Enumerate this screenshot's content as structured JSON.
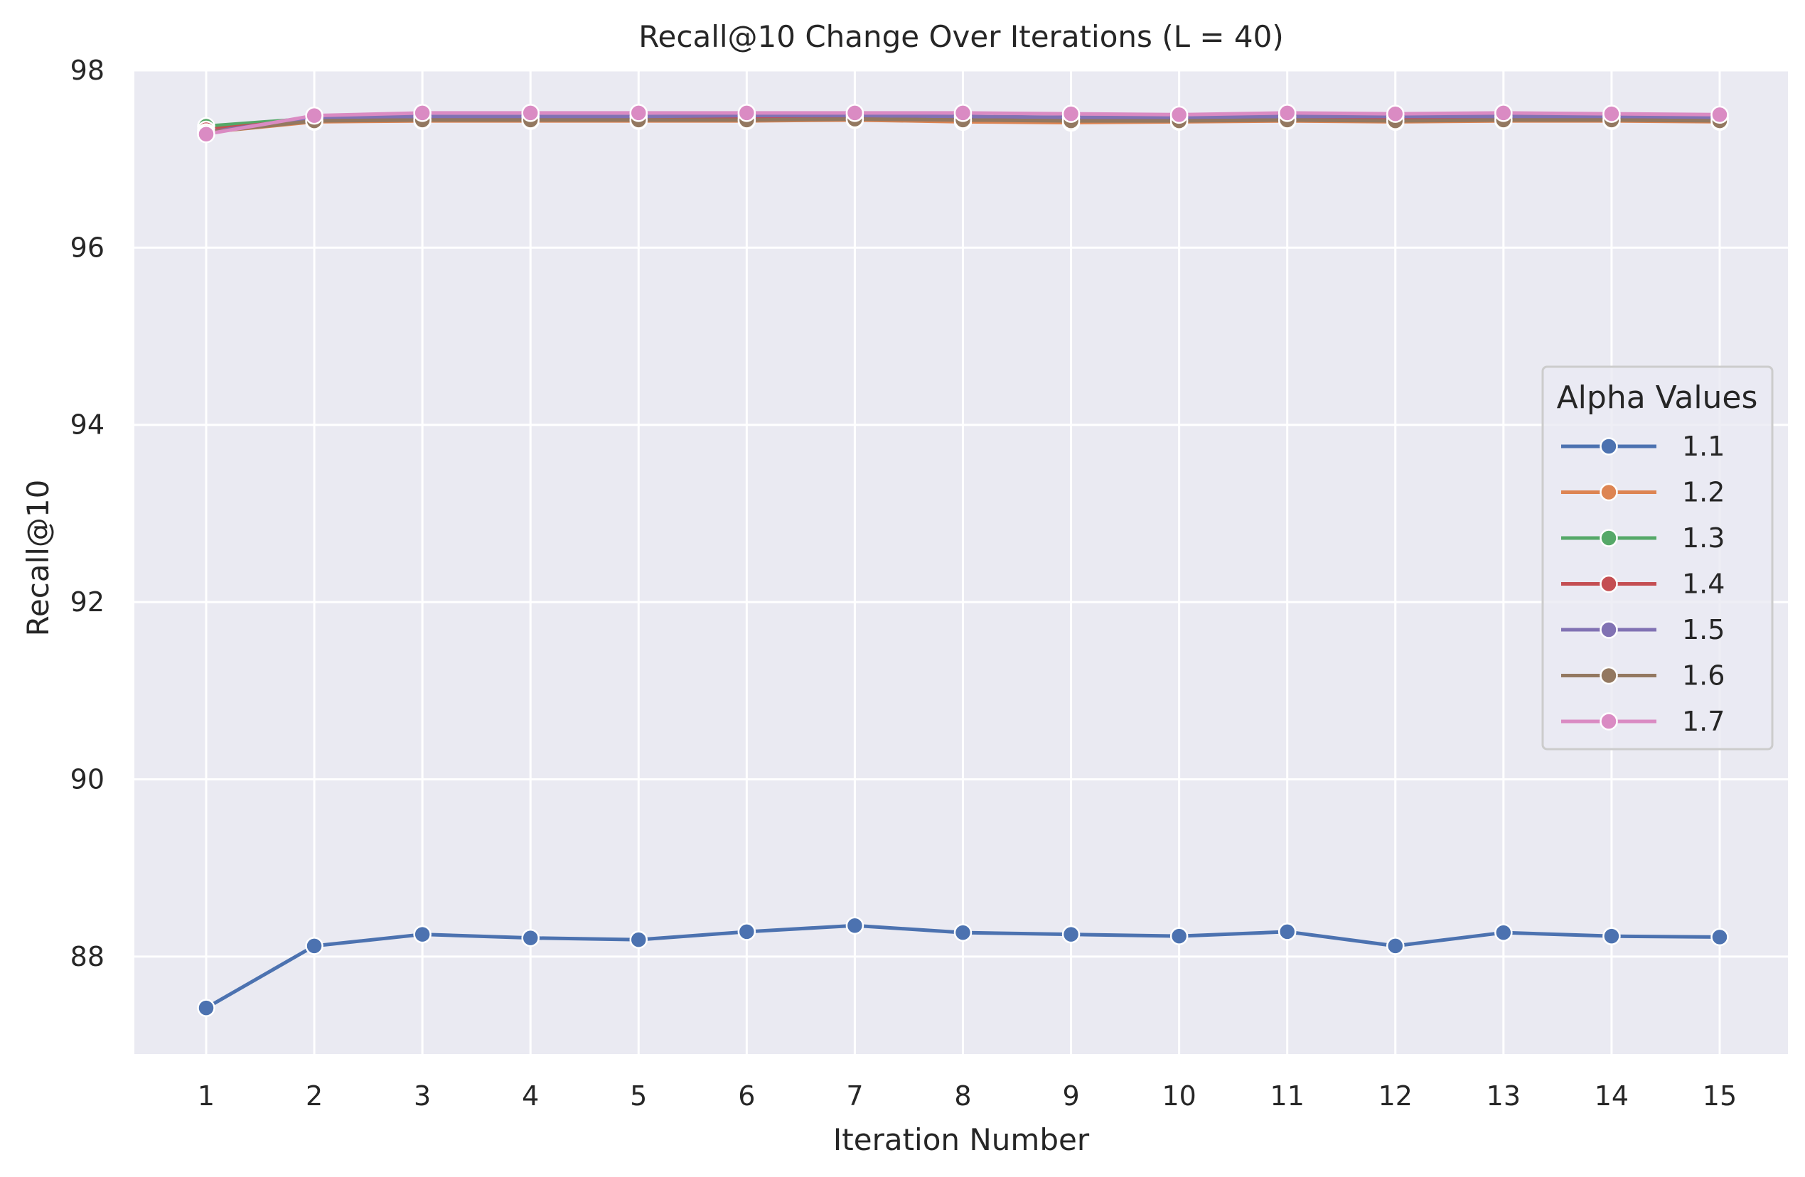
{
  "chart_data": {
    "type": "line",
    "title": "Recall@10 Change Over Iterations (L = 40)",
    "xlabel": "Iteration Number",
    "ylabel": "Recall@10",
    "x": [
      1,
      2,
      3,
      4,
      5,
      6,
      7,
      8,
      9,
      10,
      11,
      12,
      13,
      14,
      15
    ],
    "xticks": [
      "1",
      "2",
      "3",
      "4",
      "5",
      "6",
      "7",
      "8",
      "9",
      "10",
      "11",
      "12",
      "13",
      "14",
      "15"
    ],
    "yticks": [
      "88",
      "90",
      "92",
      "94",
      "96",
      "98"
    ],
    "ylim": [
      86.9,
      98
    ],
    "grid": true,
    "legend_title": "Alpha Values",
    "legend_position": "right",
    "series": [
      {
        "name": "1.1",
        "color": "#4c72b0",
        "values": [
          87.42,
          88.12,
          88.25,
          88.21,
          88.19,
          88.28,
          88.35,
          88.27,
          88.25,
          88.23,
          88.28,
          88.12,
          88.27,
          88.23,
          88.22
        ]
      },
      {
        "name": "1.2",
        "color": "#dd8452",
        "values": [
          97.3,
          97.42,
          97.43,
          97.43,
          97.43,
          97.43,
          97.44,
          97.42,
          97.41,
          97.42,
          97.43,
          97.42,
          97.43,
          97.43,
          97.42
        ]
      },
      {
        "name": "1.3",
        "color": "#55a868",
        "values": [
          97.37,
          97.46,
          97.46,
          97.47,
          97.47,
          97.47,
          97.47,
          97.46,
          97.45,
          97.46,
          97.47,
          97.46,
          97.47,
          97.46,
          97.46
        ]
      },
      {
        "name": "1.4",
        "color": "#c44e52",
        "values": [
          97.33,
          97.45,
          97.45,
          97.46,
          97.46,
          97.46,
          97.46,
          97.45,
          97.45,
          97.45,
          97.46,
          97.45,
          97.46,
          97.46,
          97.45
        ]
      },
      {
        "name": "1.5",
        "color": "#8172b3",
        "values": [
          97.3,
          97.47,
          97.48,
          97.48,
          97.48,
          97.49,
          97.49,
          97.48,
          97.47,
          97.47,
          97.48,
          97.48,
          97.48,
          97.48,
          97.47
        ]
      },
      {
        "name": "1.6",
        "color": "#937860",
        "values": [
          97.3,
          97.43,
          97.44,
          97.44,
          97.44,
          97.44,
          97.45,
          97.44,
          97.43,
          97.43,
          97.44,
          97.43,
          97.44,
          97.44,
          97.43
        ]
      },
      {
        "name": "1.7",
        "color": "#da8bc3",
        "values": [
          97.28,
          97.49,
          97.52,
          97.52,
          97.52,
          97.52,
          97.52,
          97.52,
          97.51,
          97.5,
          97.52,
          97.51,
          97.52,
          97.51,
          97.5
        ]
      }
    ]
  }
}
